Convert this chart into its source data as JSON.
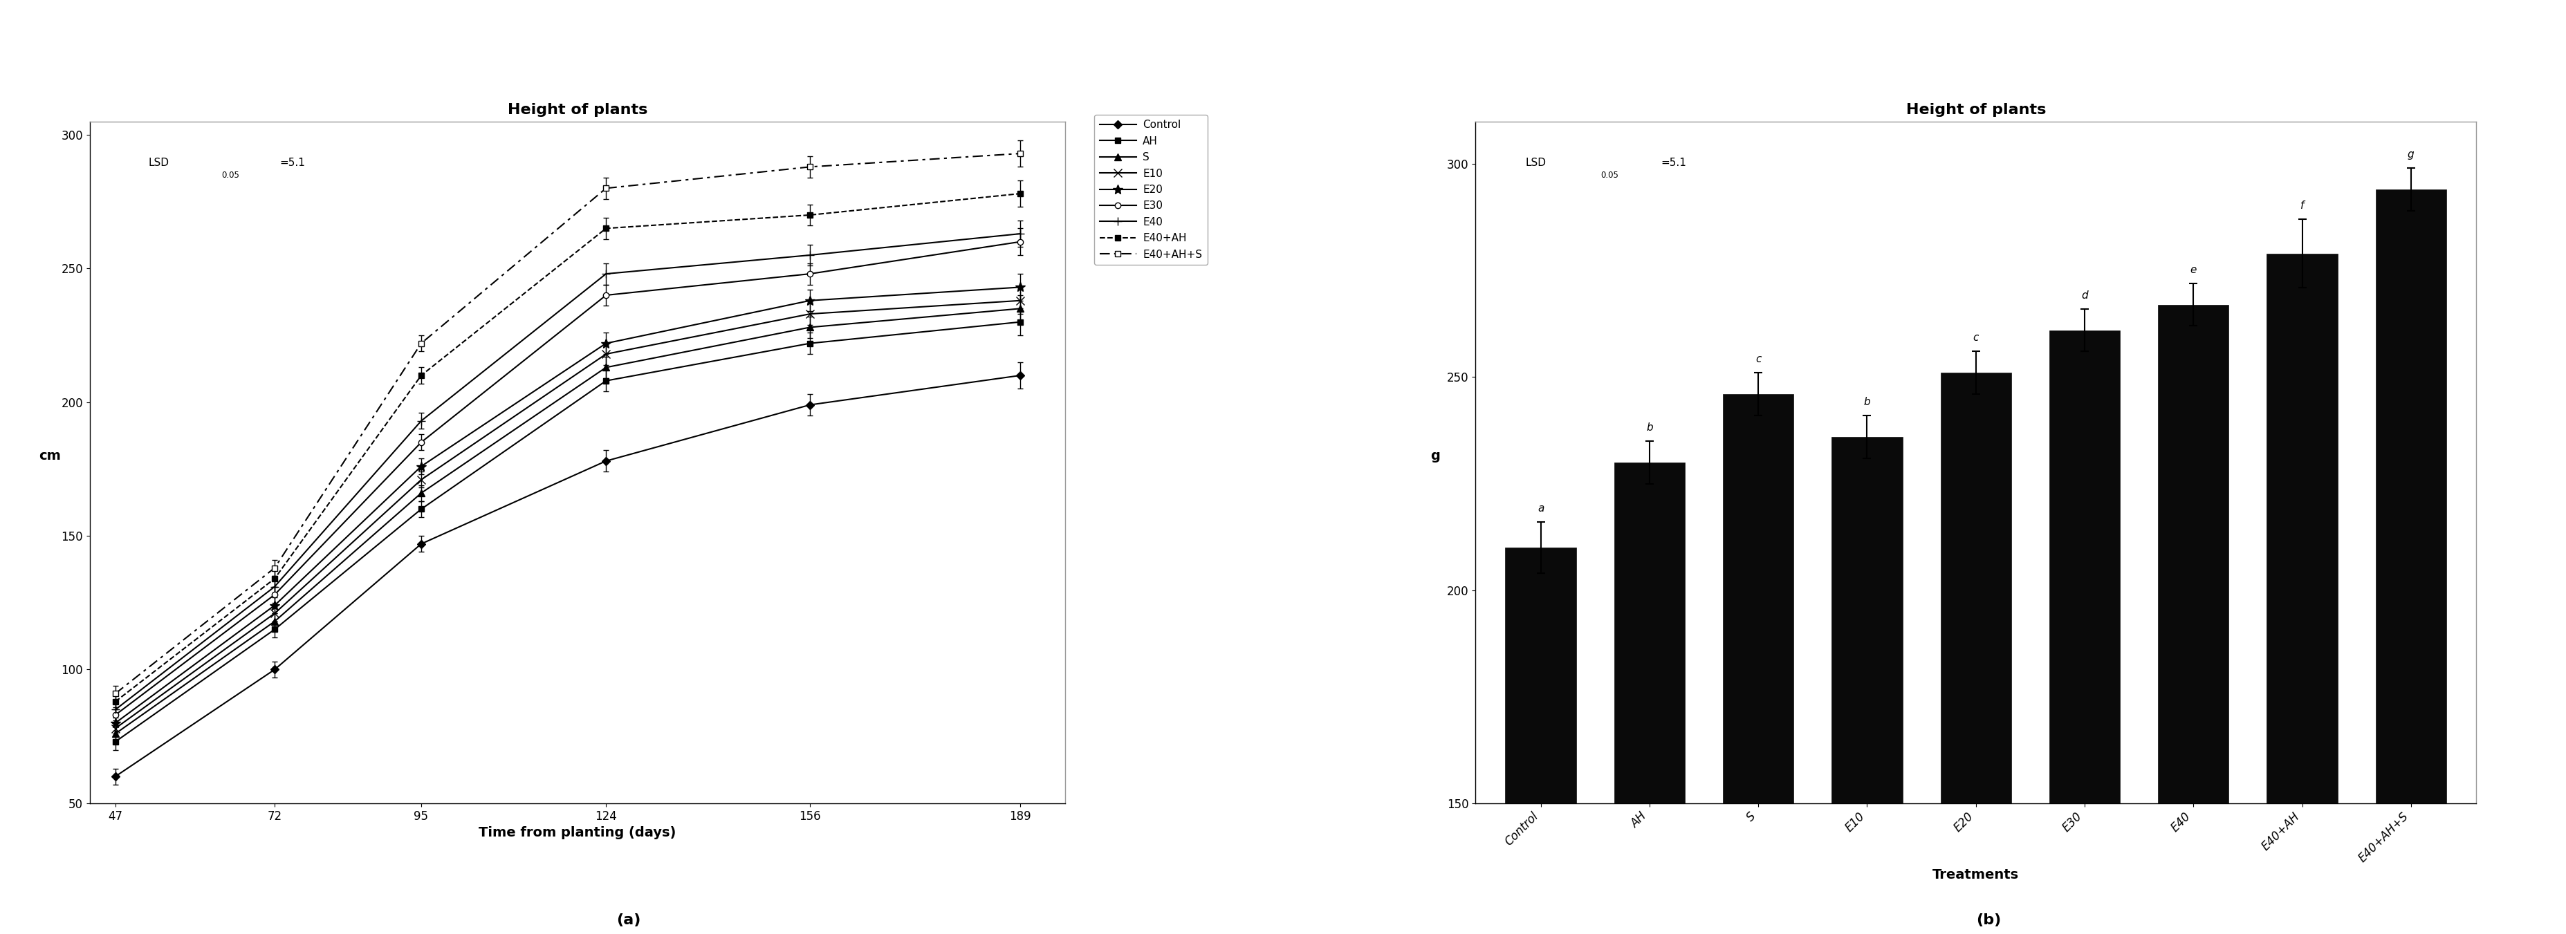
{
  "title": "Height of plants",
  "line_x": [
    47,
    72,
    95,
    124,
    156,
    189
  ],
  "line_ylabel": "cm",
  "line_xlabel": "Time from planting (days)",
  "line_ylim": [
    50,
    305
  ],
  "line_yticks": [
    50,
    100,
    150,
    200,
    250,
    300
  ],
  "lines_order": [
    "Control",
    "AH",
    "S",
    "E10",
    "E20",
    "E30",
    "E40",
    "E40+AH",
    "E40+AH+S"
  ],
  "lines": {
    "Control": {
      "y": [
        60,
        100,
        147,
        178,
        199,
        210
      ],
      "err": [
        3,
        3,
        3,
        4,
        4,
        5
      ],
      "marker": "D",
      "linestyle": "solid",
      "mfc": "#000000"
    },
    "AH": {
      "y": [
        73,
        115,
        160,
        208,
        222,
        230
      ],
      "err": [
        3,
        3,
        3,
        4,
        4,
        5
      ],
      "marker": "s",
      "linestyle": "solid",
      "mfc": "#000000"
    },
    "S": {
      "y": [
        76,
        118,
        166,
        213,
        228,
        235
      ],
      "err": [
        3,
        3,
        3,
        4,
        4,
        5
      ],
      "marker": "^",
      "linestyle": "solid",
      "mfc": "#000000"
    },
    "E10": {
      "y": [
        78,
        121,
        171,
        218,
        233,
        238
      ],
      "err": [
        3,
        3,
        3,
        4,
        4,
        5
      ],
      "marker": "x",
      "linestyle": "solid",
      "mfc": "#000000"
    },
    "E20": {
      "y": [
        80,
        124,
        176,
        222,
        238,
        243
      ],
      "err": [
        3,
        3,
        3,
        4,
        4,
        5
      ],
      "marker": "*",
      "linestyle": "solid",
      "mfc": "#000000"
    },
    "E30": {
      "y": [
        83,
        128,
        185,
        240,
        248,
        260
      ],
      "err": [
        3,
        3,
        3,
        4,
        4,
        5
      ],
      "marker": "o",
      "linestyle": "solid",
      "mfc": "#ffffff"
    },
    "E40": {
      "y": [
        85,
        131,
        193,
        248,
        255,
        263
      ],
      "err": [
        3,
        3,
        3,
        4,
        4,
        5
      ],
      "marker": "+",
      "linestyle": "solid",
      "mfc": "#000000"
    },
    "E40+AH": {
      "y": [
        88,
        134,
        210,
        265,
        270,
        278
      ],
      "err": [
        3,
        3,
        3,
        4,
        4,
        5
      ],
      "marker": "s",
      "linestyle": "dashed",
      "mfc": "#000000"
    },
    "E40+AH+S": {
      "y": [
        91,
        138,
        222,
        280,
        288,
        293
      ],
      "err": [
        3,
        3,
        3,
        4,
        4,
        5
      ],
      "marker": "s",
      "linestyle": "dashdot",
      "mfc": "#ffffff"
    }
  },
  "bar_categories": [
    "Control",
    "AH",
    "S",
    "E10",
    "E20",
    "E30",
    "E40",
    "E40+AH",
    "E40+AH+S"
  ],
  "bar_values": [
    210,
    230,
    246,
    236,
    251,
    261,
    267,
    279,
    294
  ],
  "bar_errors": [
    6,
    5,
    5,
    5,
    5,
    5,
    5,
    8,
    5
  ],
  "bar_letters": [
    "a",
    "b",
    "c",
    "b",
    "c",
    "d",
    "e",
    "f",
    "g"
  ],
  "bar_ylabel": "g",
  "bar_xlabel": "Treatments",
  "bar_ylim": [
    150,
    310
  ],
  "bar_yticks": [
    150,
    200,
    250,
    300
  ],
  "bar_color": "#0a0a0a",
  "panel_labels": [
    "(a)",
    "(b)"
  ]
}
